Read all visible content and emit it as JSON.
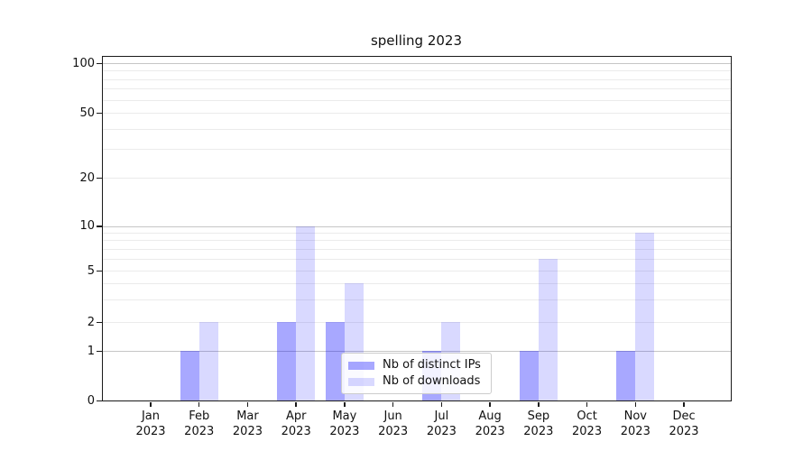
{
  "title": "spelling 2023",
  "legend": {
    "items": [
      {
        "label": "Nb of distinct IPs",
        "color": "rgba(0,0,255,0.34)"
      },
      {
        "label": "Nb of downloads",
        "color": "rgba(0,0,255,0.15)"
      }
    ]
  },
  "colors": {
    "distinct_ips_bar": "rgba(0,0,255,0.34)",
    "downloads_bar": "rgba(0,0,255,0.15)",
    "major_gridline": "#c6c6c6",
    "minor_gridline": "#ebebeb",
    "axis": "#1a1a1a"
  },
  "chart_data": {
    "type": "bar",
    "title": "spelling 2023",
    "categories": [
      "Jan",
      "Feb",
      "Mar",
      "Apr",
      "May",
      "Jun",
      "Jul",
      "Aug",
      "Sep",
      "Oct",
      "Nov",
      "Dec"
    ],
    "year_label": "2023",
    "series": [
      {
        "name": "Nb of distinct IPs",
        "color": "rgba(0,0,255,0.34)",
        "values": [
          0,
          1,
          0,
          2,
          2,
          0,
          1,
          0,
          1,
          0,
          1,
          0
        ]
      },
      {
        "name": "Nb of downloads",
        "color": "rgba(0,0,255,0.15)",
        "values": [
          0,
          2,
          0,
          10,
          4,
          0,
          2,
          0,
          6,
          0,
          9,
          0
        ]
      }
    ],
    "yscale": "symlog",
    "ylim": [
      0,
      112
    ],
    "yticks": [
      0,
      1,
      2,
      5,
      10,
      20,
      50,
      100
    ],
    "major_gridlines": [
      1,
      10,
      100
    ],
    "minor_gridlines": [
      2,
      3,
      4,
      5,
      6,
      7,
      8,
      9,
      20,
      30,
      40,
      50,
      60,
      70,
      80,
      90
    ],
    "grid": true,
    "legend_position": "lower center"
  }
}
